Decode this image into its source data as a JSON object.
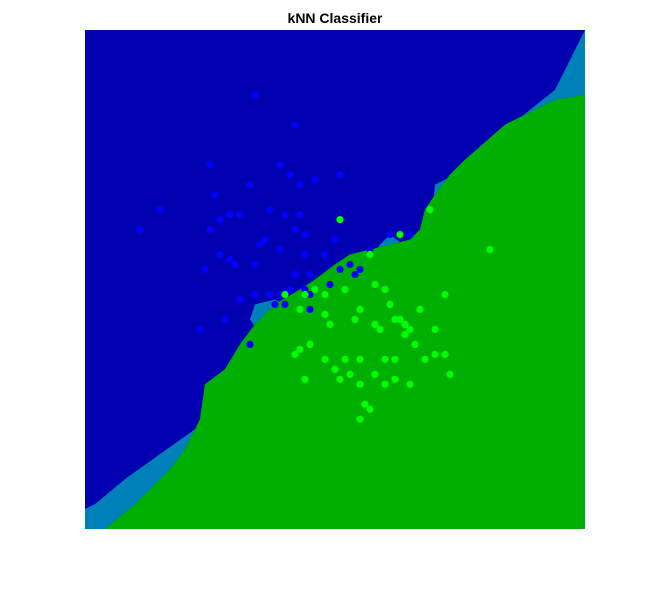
{
  "chart_data": {
    "type": "scatter",
    "title": "kNN Classifier",
    "xlabel": "",
    "ylabel": "",
    "xlim": [
      0,
      100
    ],
    "ylim": [
      0,
      100
    ],
    "axes_visible": false,
    "grid": false,
    "legend": "none",
    "colors": {
      "region_class1": "#0000B0",
      "region_class2": "#00B000",
      "region_boundary": "#0080B8",
      "points_class1": "#0000FF",
      "points_class2": "#00FF00"
    },
    "regions": {
      "boundary_upper": [
        [
          0,
          4
        ],
        [
          2,
          5
        ],
        [
          8,
          10
        ],
        [
          15,
          15
        ],
        [
          22,
          20
        ],
        [
          24,
          24
        ],
        [
          28,
          28
        ],
        [
          32,
          33
        ],
        [
          34,
          38
        ],
        [
          35,
          39
        ],
        [
          33,
          42
        ],
        [
          34,
          45
        ],
        [
          38,
          46
        ],
        [
          42,
          44
        ],
        [
          46,
          47
        ],
        [
          50,
          49
        ],
        [
          53,
          52
        ],
        [
          56,
          53
        ],
        [
          59,
          57
        ],
        [
          61,
          59
        ],
        [
          65,
          56
        ],
        [
          67,
          58
        ],
        [
          69,
          59
        ],
        [
          70,
          69
        ],
        [
          72,
          70
        ],
        [
          74,
          71
        ],
        [
          76,
          74
        ],
        [
          84,
          80
        ],
        [
          94,
          88
        ],
        [
          100,
          100
        ]
      ],
      "boundary_lower": [
        [
          0,
          0
        ],
        [
          4,
          0
        ],
        [
          10,
          5
        ],
        [
          17,
          12
        ],
        [
          20,
          16
        ],
        [
          23,
          22
        ],
        [
          24,
          29
        ],
        [
          28,
          32
        ],
        [
          31,
          37
        ],
        [
          34,
          41
        ],
        [
          38,
          45
        ],
        [
          43,
          48
        ],
        [
          46,
          50
        ],
        [
          50,
          53
        ],
        [
          53,
          55
        ],
        [
          57,
          56
        ],
        [
          61,
          57
        ],
        [
          65,
          58
        ],
        [
          67,
          60
        ],
        [
          68,
          64
        ],
        [
          70,
          67
        ],
        [
          73,
          71
        ],
        [
          76,
          74
        ],
        [
          84,
          81
        ],
        [
          94,
          86
        ],
        [
          100,
          87
        ]
      ]
    },
    "series": [
      {
        "class": 1,
        "points": [
          [
            34,
            87
          ],
          [
            42,
            81
          ],
          [
            25,
            73
          ],
          [
            39,
            73
          ],
          [
            41,
            71
          ],
          [
            51,
            71
          ],
          [
            26,
            67
          ],
          [
            33,
            69
          ],
          [
            43,
            69
          ],
          [
            46,
            70
          ],
          [
            15,
            64
          ],
          [
            27,
            62
          ],
          [
            29,
            63
          ],
          [
            31,
            63
          ],
          [
            37,
            64
          ],
          [
            40,
            63
          ],
          [
            43,
            63
          ],
          [
            11,
            60
          ],
          [
            25,
            60
          ],
          [
            42,
            60
          ],
          [
            44,
            59
          ],
          [
            36,
            58
          ],
          [
            50,
            58
          ],
          [
            35,
            57
          ],
          [
            39,
            56
          ],
          [
            27,
            55
          ],
          [
            29,
            54
          ],
          [
            44,
            55
          ],
          [
            48,
            55
          ],
          [
            30,
            53
          ],
          [
            34,
            53
          ],
          [
            24,
            52
          ],
          [
            45,
            51
          ],
          [
            54,
            51
          ],
          [
            57,
            56
          ],
          [
            55,
            52
          ],
          [
            49,
            49
          ],
          [
            42,
            51
          ],
          [
            41,
            48
          ],
          [
            39,
            47
          ],
          [
            38,
            45
          ],
          [
            44,
            48
          ],
          [
            45,
            47
          ],
          [
            31,
            46
          ],
          [
            40,
            45
          ],
          [
            45,
            44
          ],
          [
            23,
            40
          ],
          [
            37,
            47
          ],
          [
            28,
            42
          ],
          [
            34,
            47
          ],
          [
            41,
            48
          ],
          [
            51,
            52
          ],
          [
            53,
            53
          ],
          [
            61,
            59
          ],
          [
            65,
            59
          ],
          [
            33,
            37
          ]
        ]
      },
      {
        "class": 2,
        "points": [
          [
            51,
            62
          ],
          [
            69,
            64
          ],
          [
            81,
            56
          ],
          [
            44,
            47
          ],
          [
            57,
            55
          ],
          [
            63,
            59
          ],
          [
            43,
            44
          ],
          [
            40,
            47
          ],
          [
            48,
            47
          ],
          [
            52,
            48
          ],
          [
            46,
            48
          ],
          [
            58,
            49
          ],
          [
            60,
            48
          ],
          [
            55,
            44
          ],
          [
            61,
            45
          ],
          [
            63,
            42
          ],
          [
            67,
            44
          ],
          [
            72,
            47
          ],
          [
            48,
            43
          ],
          [
            54,
            42
          ],
          [
            49,
            41
          ],
          [
            58,
            41
          ],
          [
            62,
            42
          ],
          [
            64,
            41
          ],
          [
            65,
            40
          ],
          [
            64,
            39
          ],
          [
            70,
            40
          ],
          [
            66,
            37
          ],
          [
            59,
            40
          ],
          [
            43,
            36
          ],
          [
            45,
            37
          ],
          [
            42,
            35
          ],
          [
            48,
            34
          ],
          [
            52,
            34
          ],
          [
            55,
            34
          ],
          [
            60,
            34
          ],
          [
            62,
            34
          ],
          [
            68,
            34
          ],
          [
            70,
            35
          ],
          [
            72,
            35
          ],
          [
            50,
            32
          ],
          [
            53,
            31
          ],
          [
            58,
            31
          ],
          [
            51,
            30
          ],
          [
            55,
            29
          ],
          [
            60,
            29
          ],
          [
            62,
            30
          ],
          [
            65,
            29
          ],
          [
            73,
            31
          ],
          [
            44,
            30
          ],
          [
            56,
            25
          ],
          [
            57,
            24
          ],
          [
            55,
            22
          ]
        ]
      }
    ]
  }
}
